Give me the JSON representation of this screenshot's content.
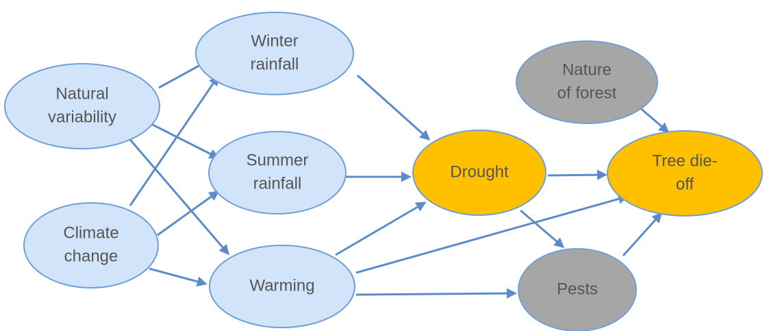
{
  "nodes": [
    {
      "id": "natural",
      "lines": [
        "Natural",
        "variability"
      ]
    },
    {
      "id": "climate",
      "lines": [
        "Climate",
        "change"
      ]
    },
    {
      "id": "winter",
      "lines": [
        "Winter",
        "rainfall"
      ]
    },
    {
      "id": "summer",
      "lines": [
        "Summer",
        "rainfall"
      ]
    },
    {
      "id": "warming",
      "lines": [
        "Warming"
      ]
    },
    {
      "id": "drought",
      "lines": [
        "Drought"
      ]
    },
    {
      "id": "nature",
      "lines": [
        "Nature",
        "of forest"
      ]
    },
    {
      "id": "tree",
      "lines": [
        "Tree die-",
        "off"
      ]
    },
    {
      "id": "pests",
      "lines": [
        "Pests"
      ]
    }
  ]
}
